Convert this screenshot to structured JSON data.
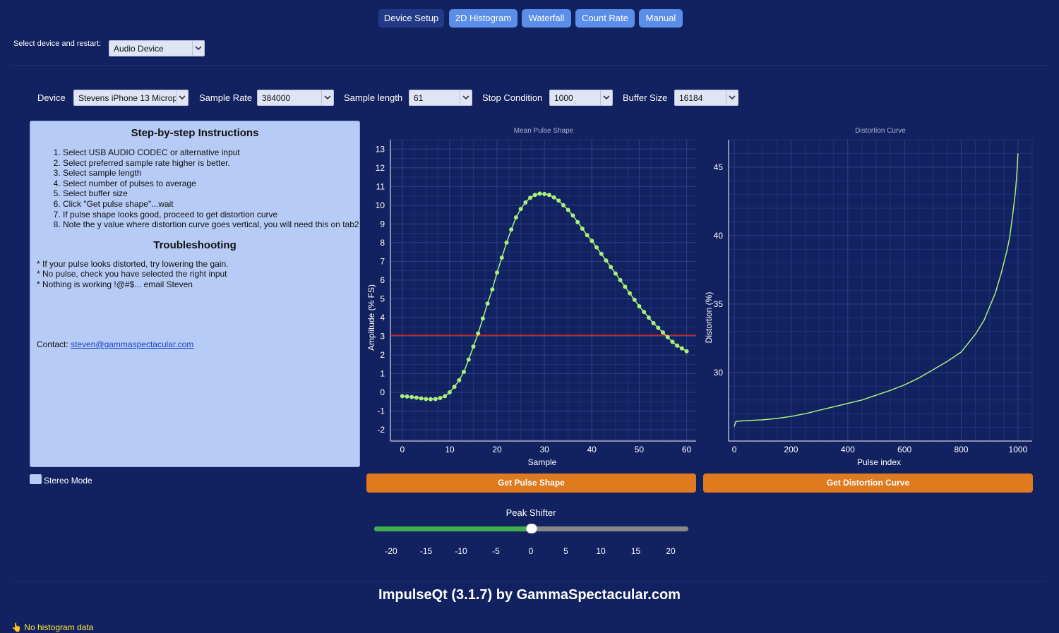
{
  "tabs": [
    {
      "label": "Device Setup",
      "active": true
    },
    {
      "label": "2D Histogram",
      "active": false
    },
    {
      "label": "Waterfall",
      "active": false
    },
    {
      "label": "Count Rate",
      "active": false
    },
    {
      "label": "Manual",
      "active": false
    }
  ],
  "device_select": {
    "label": "Select device and restart:",
    "value": "Audio Device"
  },
  "settings": {
    "device_label": "Device",
    "device_value": "Stevens iPhone 13 Microp",
    "sample_rate_label": "Sample Rate",
    "sample_rate_value": "384000",
    "sample_length_label": "Sample length",
    "sample_length_value": "61",
    "stop_condition_label": "Stop Condition",
    "stop_condition_value": "1000",
    "buffer_size_label": "Buffer Size",
    "buffer_size_value": "16184"
  },
  "instructions": {
    "title": "Step-by-step Instructions",
    "steps": [
      "Select USB AUDIO CODEC or alternative input",
      "Select preferred sample rate higher is better.",
      "Select sample length",
      "Select number of pulses to average",
      "Select buffer size",
      "Click \"Get pulse shape\"...wait",
      "If pulse shape looks good, proceed to get distortion curve",
      "Note the y value where distortion curve goes vertical, you will need this on tab2"
    ],
    "troubleshooting_title": "Troubleshooting",
    "troubleshooting": [
      "* If your pulse looks distorted, try lowering the gain.",
      "* No pulse, check you have selected the right input",
      "* Nothing is working !@#$... email Steven"
    ],
    "contact_label": "Contact:",
    "contact_email": "steven@gammaspectacular.com"
  },
  "stereo_mode": {
    "label": "Stereo Mode",
    "checked": false
  },
  "buttons": {
    "get_pulse_shape": "Get Pulse Shape",
    "get_distortion_curve": "Get Distortion Curve"
  },
  "peak_shifter": {
    "label": "Peak Shifter",
    "min": -20,
    "max": 20,
    "value": 0,
    "ticks": [
      "-20",
      "-15",
      "-10",
      "-5",
      "0",
      "5",
      "10",
      "15",
      "20"
    ]
  },
  "footer": {
    "title": "ImpulseQt (3.1.7) by GammaSpectacular.com"
  },
  "status": {
    "icon": "pointing-hand-icon",
    "text": "No histogram data"
  },
  "colors": {
    "background": "#122160",
    "accent_orange": "#e07a1f",
    "pulse_line": "#a8f07a",
    "threshold_line": "#d42a2a",
    "tab": "#5b8ee8",
    "tab_active": "#233a86"
  },
  "chart_data": [
    {
      "type": "line",
      "title": "Mean Pulse Shape",
      "xlabel": "Sample",
      "ylabel": "Amplitude (% FS)",
      "xlim": [
        -2.5,
        62
      ],
      "ylim": [
        -2.6,
        13.5
      ],
      "xticks": [
        0,
        10,
        20,
        30,
        40,
        50,
        60
      ],
      "yticks": [
        -2,
        -1,
        0,
        1,
        2,
        3,
        4,
        5,
        6,
        7,
        8,
        9,
        10,
        11,
        12,
        13
      ],
      "threshold": 3.05,
      "grid": true,
      "x": [
        0,
        1,
        2,
        3,
        4,
        5,
        6,
        7,
        8,
        9,
        10,
        11,
        12,
        13,
        14,
        15,
        16,
        17,
        18,
        19,
        20,
        21,
        22,
        23,
        24,
        25,
        26,
        27,
        28,
        29,
        30,
        31,
        32,
        33,
        34,
        35,
        36,
        37,
        38,
        39,
        40,
        41,
        42,
        43,
        44,
        45,
        46,
        47,
        48,
        49,
        50,
        51,
        52,
        53,
        54,
        55,
        56,
        57,
        58,
        59,
        60
      ],
      "y": [
        -0.2,
        -0.22,
        -0.25,
        -0.28,
        -0.32,
        -0.35,
        -0.36,
        -0.35,
        -0.3,
        -0.2,
        0.0,
        0.3,
        0.65,
        1.1,
        1.75,
        2.45,
        3.15,
        3.95,
        4.75,
        5.5,
        6.4,
        7.2,
        8.0,
        8.7,
        9.35,
        9.8,
        10.15,
        10.4,
        10.55,
        10.62,
        10.6,
        10.55,
        10.42,
        10.25,
        10.0,
        9.75,
        9.45,
        9.1,
        8.75,
        8.4,
        8.1,
        7.75,
        7.4,
        7.05,
        6.7,
        6.35,
        6.0,
        5.65,
        5.3,
        4.95,
        4.6,
        4.3,
        4.0,
        3.7,
        3.45,
        3.2,
        2.95,
        2.7,
        2.5,
        2.35,
        2.2
      ]
    },
    {
      "type": "line",
      "title": "Distortion Curve",
      "xlabel": "Pulse index",
      "ylabel": "Distortion (%)",
      "xlim": [
        -20,
        1050
      ],
      "ylim": [
        25,
        47
      ],
      "xticks": [
        0,
        200,
        400,
        600,
        800,
        1000
      ],
      "yticks": [
        30,
        35,
        40,
        45
      ],
      "grid": true,
      "x": [
        0,
        5,
        10,
        50,
        100,
        150,
        200,
        250,
        300,
        350,
        400,
        450,
        500,
        550,
        600,
        650,
        700,
        750,
        800,
        850,
        880,
        900,
        920,
        940,
        960,
        970,
        980,
        990,
        995,
        1000
      ],
      "y": [
        26.05,
        26.4,
        26.45,
        26.5,
        26.55,
        26.65,
        26.8,
        27.0,
        27.25,
        27.5,
        27.75,
        28.0,
        28.35,
        28.7,
        29.1,
        29.6,
        30.2,
        30.8,
        31.5,
        32.8,
        33.8,
        34.8,
        35.8,
        37.2,
        38.8,
        39.8,
        41.3,
        43.0,
        44.2,
        46.0
      ]
    }
  ]
}
